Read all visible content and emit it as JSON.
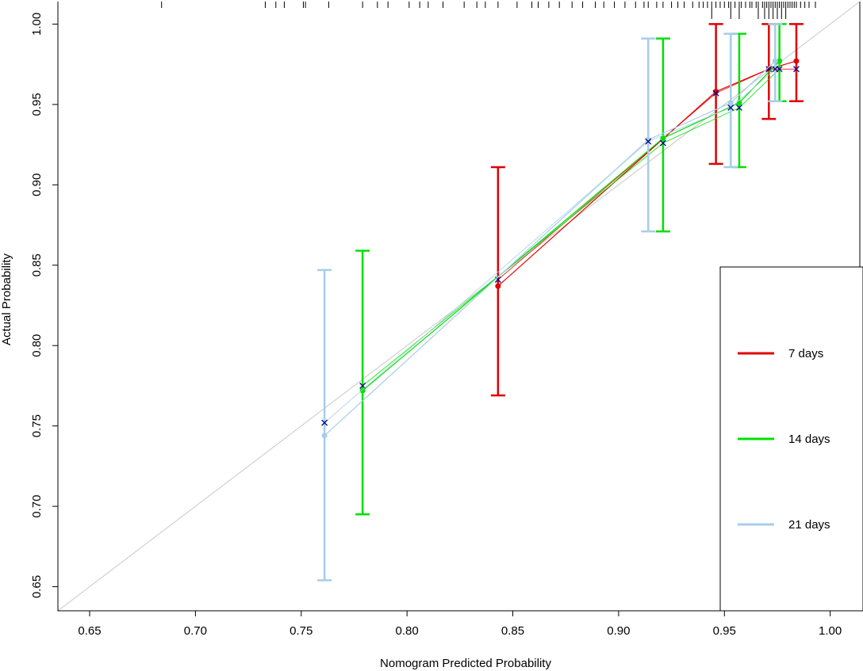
{
  "chart_data": {
    "type": "scatter",
    "xlabel": "Nomogram  Predicted Probability",
    "ylabel": "Actual Probability",
    "xlim": [
      0.635,
      1.014
    ],
    "ylim": [
      0.635,
      1.014
    ],
    "x_ticks": [
      0.65,
      0.7,
      0.75,
      0.8,
      0.85,
      0.9,
      0.95,
      1.0
    ],
    "y_ticks": [
      0.65,
      0.7,
      0.75,
      0.8,
      0.85,
      0.9,
      0.95,
      1.0
    ],
    "x_tick_labels": [
      "0.65",
      "0.70",
      "0.75",
      "0.80",
      "0.85",
      "0.90",
      "0.95",
      "1.00"
    ],
    "y_tick_labels": [
      "0.65",
      "0.70",
      "0.75",
      "0.80",
      "0.85",
      "0.90",
      "0.95",
      "1.00"
    ],
    "ideal_line": true,
    "legend_position": "right",
    "series": [
      {
        "name": "7 days",
        "color": "#e00000",
        "points": [
          {
            "x": 0.843,
            "y": 0.837,
            "lo": 0.769,
            "hi": 0.911,
            "bc": 0.841
          },
          {
            "x": 0.946,
            "y": 0.958,
            "lo": 0.913,
            "hi": 1.0,
            "bc": 0.957
          },
          {
            "x": 0.971,
            "y": 0.972,
            "lo": 0.941,
            "hi": 1.0,
            "bc": 0.972
          },
          {
            "x": 0.984,
            "y": 0.977,
            "lo": 0.952,
            "hi": 1.0,
            "bc": 0.972
          }
        ]
      },
      {
        "name": "14 days",
        "color": "#00e000",
        "points": [
          {
            "x": 0.779,
            "y": 0.772,
            "lo": 0.695,
            "hi": 0.859,
            "bc": 0.775
          },
          {
            "x": 0.921,
            "y": 0.929,
            "lo": 0.871,
            "hi": 0.991,
            "bc": 0.926
          },
          {
            "x": 0.957,
            "y": 0.951,
            "lo": 0.911,
            "hi": 0.994,
            "bc": 0.948
          },
          {
            "x": 0.976,
            "y": 0.977,
            "lo": 0.952,
            "hi": 1.0,
            "bc": 0.972
          }
        ]
      },
      {
        "name": "21 days",
        "color": "#a6cde8",
        "points": [
          {
            "x": 0.761,
            "y": 0.744,
            "lo": 0.654,
            "hi": 0.847,
            "bc": 0.752
          },
          {
            "x": 0.914,
            "y": 0.928,
            "lo": 0.871,
            "hi": 0.991,
            "bc": 0.927
          },
          {
            "x": 0.953,
            "y": 0.951,
            "lo": 0.911,
            "hi": 0.994,
            "bc": 0.948
          },
          {
            "x": 0.974,
            "y": 0.977,
            "lo": 0.952,
            "hi": 1.0,
            "bc": 0.972
          }
        ]
      }
    ],
    "rug_x": [
      0.684,
      0.733,
      0.738,
      0.742,
      0.751,
      0.752,
      0.763,
      0.779,
      0.786,
      0.791,
      0.801,
      0.806,
      0.81,
      0.817,
      0.827,
      0.833,
      0.837,
      0.843,
      0.852,
      0.859,
      0.862,
      0.867,
      0.872,
      0.878,
      0.883,
      0.889,
      0.893,
      0.898,
      0.903,
      0.908,
      0.912,
      0.914,
      0.918,
      0.921,
      0.925,
      0.928,
      0.931,
      0.935,
      0.938,
      0.94,
      0.942,
      0.944,
      0.946,
      0.948,
      0.95,
      0.952,
      0.953,
      0.955,
      0.957,
      0.958,
      0.96,
      0.962,
      0.963,
      0.965,
      0.966,
      0.968,
      0.969,
      0.97,
      0.971,
      0.972,
      0.973,
      0.974,
      0.975,
      0.976,
      0.977,
      0.978,
      0.979,
      0.98,
      0.981,
      0.982,
      0.983,
      0.984,
      0.986,
      0.988,
      0.99,
      0.993
    ],
    "rug_tall_x": [
      0.944,
      0.953,
      0.957,
      0.966,
      0.969,
      0.971,
      0.973,
      0.975,
      0.977,
      0.979
    ]
  }
}
